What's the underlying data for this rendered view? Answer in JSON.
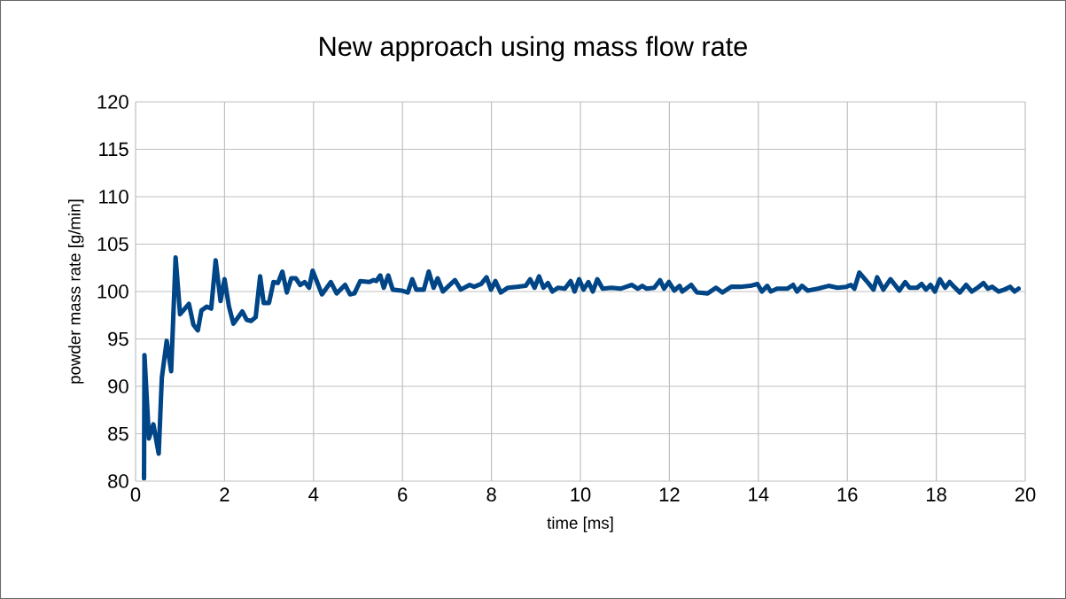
{
  "chart_data": {
    "type": "line",
    "title": "New approach using mass flow rate",
    "xlabel": "time [ms]",
    "ylabel": "powder mass rate [g/min]",
    "xlim": [
      0,
      20
    ],
    "ylim": [
      80,
      120
    ],
    "xticks": [
      0,
      2,
      4,
      6,
      8,
      10,
      12,
      14,
      16,
      18,
      20
    ],
    "yticks": [
      80,
      85,
      90,
      95,
      100,
      105,
      110,
      115,
      120
    ],
    "grid": true,
    "marker": "none",
    "line_style": "solid",
    "series": [
      {
        "color": "#004586",
        "x": [
          0.19,
          0.2,
          0.3,
          0.4,
          0.52,
          0.59,
          0.7,
          0.8,
          0.9,
          1.0,
          1.2,
          1.3,
          1.4,
          1.48,
          1.6,
          1.7,
          1.8,
          1.91,
          2.0,
          2.1,
          2.2,
          2.4,
          2.5,
          2.6,
          2.7,
          2.8,
          2.88,
          3.0,
          3.1,
          3.2,
          3.3,
          3.4,
          3.5,
          3.6,
          3.7,
          3.8,
          3.9,
          3.98,
          4.19,
          4.39,
          4.52,
          4.71,
          4.82,
          4.92,
          5.05,
          5.25,
          5.35,
          5.41,
          5.5,
          5.58,
          5.68,
          5.78,
          5.98,
          6.12,
          6.22,
          6.31,
          6.48,
          6.59,
          6.7,
          6.79,
          6.91,
          7.04,
          7.18,
          7.31,
          7.51,
          7.61,
          7.77,
          7.89,
          7.99,
          8.09,
          8.21,
          8.37,
          8.57,
          8.77,
          8.87,
          8.97,
          9.07,
          9.17,
          9.27,
          9.37,
          9.5,
          9.65,
          9.78,
          9.87,
          9.97,
          10.07,
          10.18,
          10.28,
          10.38,
          10.5,
          10.7,
          10.9,
          11.03,
          11.16,
          11.29,
          11.39,
          11.49,
          11.66,
          11.79,
          11.88,
          11.99,
          12.11,
          12.23,
          12.29,
          12.49,
          12.62,
          12.86,
          13.05,
          13.19,
          13.39,
          13.59,
          13.82,
          13.98,
          14.08,
          14.2,
          14.28,
          14.42,
          14.65,
          14.78,
          14.87,
          14.98,
          15.11,
          15.34,
          15.58,
          15.78,
          15.98,
          16.08,
          16.16,
          16.27,
          16.47,
          16.59,
          16.67,
          16.81,
          16.97,
          17.17,
          17.3,
          17.4,
          17.57,
          17.67,
          17.77,
          17.87,
          17.97,
          18.08,
          18.2,
          18.3,
          18.4,
          18.53,
          18.67,
          18.8,
          18.93,
          19.06,
          19.16,
          19.26,
          19.4,
          19.53,
          19.66,
          19.76,
          19.85
        ],
        "values": [
          80.3,
          93.3,
          84.5,
          86.0,
          82.9,
          90.9,
          94.8,
          91.6,
          103.6,
          97.6,
          98.7,
          96.5,
          95.9,
          98.0,
          98.4,
          98.2,
          103.3,
          99.0,
          101.3,
          98.4,
          96.6,
          97.9,
          97.0,
          96.9,
          97.3,
          101.6,
          98.8,
          98.8,
          101.0,
          100.9,
          102.1,
          99.9,
          101.4,
          101.4,
          100.7,
          101.0,
          100.4,
          102.2,
          99.7,
          101.0,
          99.8,
          100.7,
          99.7,
          99.8,
          101.1,
          101.0,
          101.2,
          101.1,
          101.7,
          100.4,
          101.7,
          100.2,
          100.1,
          99.9,
          101.3,
          100.2,
          100.2,
          102.1,
          100.4,
          101.4,
          100.0,
          100.6,
          101.2,
          100.2,
          100.7,
          100.5,
          100.8,
          101.5,
          100.2,
          101.1,
          99.9,
          100.4,
          100.5,
          100.6,
          101.3,
          100.4,
          101.6,
          100.4,
          100.9,
          100.0,
          100.4,
          100.3,
          101.1,
          100.0,
          101.3,
          100.2,
          101.0,
          100.0,
          101.3,
          100.3,
          100.4,
          100.3,
          100.5,
          100.7,
          100.3,
          100.6,
          100.3,
          100.4,
          101.2,
          100.3,
          101.0,
          100.1,
          100.6,
          100.0,
          100.7,
          99.9,
          99.8,
          100.4,
          99.9,
          100.5,
          100.5,
          100.6,
          100.8,
          100.0,
          100.6,
          100.0,
          100.3,
          100.3,
          100.7,
          100.0,
          100.6,
          100.1,
          100.3,
          100.6,
          100.4,
          100.5,
          100.7,
          100.3,
          102.0,
          100.9,
          100.2,
          101.5,
          100.2,
          101.3,
          100.1,
          101.0,
          100.4,
          100.4,
          100.8,
          100.2,
          100.7,
          100.0,
          101.3,
          100.4,
          101.0,
          100.5,
          99.9,
          100.7,
          100.0,
          100.4,
          100.9,
          100.3,
          100.5,
          100.0,
          100.2,
          100.5,
          100.0,
          100.3
        ]
      }
    ]
  }
}
